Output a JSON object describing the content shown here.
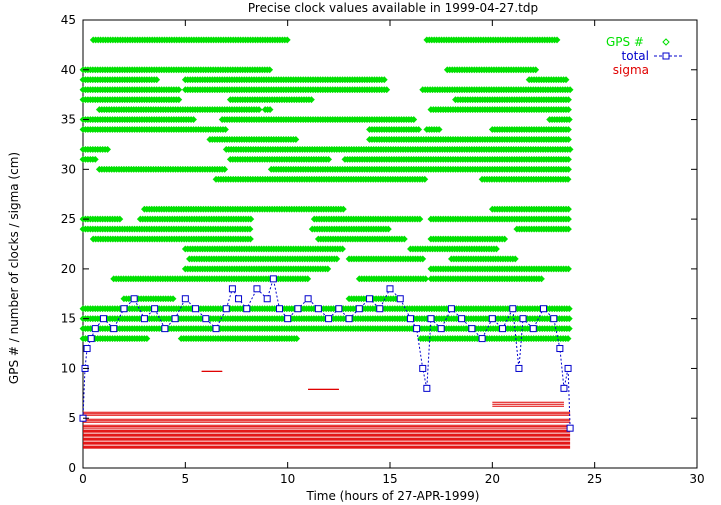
{
  "chart_data": {
    "type": "scatter",
    "title": "Precise clock values available in 1999-04-27.tdp",
    "xlabel": "Time (hours of 27-APR-1999)",
    "ylabel": "GPS # / number of clocks / sigma (cm)",
    "xlim": [
      0,
      30
    ],
    "ylim": [
      0,
      45
    ],
    "x_ticks": [
      "0",
      "5",
      "10",
      "15",
      "20",
      "25",
      "30"
    ],
    "y_ticks": [
      "0",
      "5",
      "10",
      "15",
      "20",
      "25",
      "30",
      "35",
      "40",
      "45"
    ],
    "grid": false,
    "legend_position": "top-right",
    "colors": {
      "gps": "#00e000",
      "total": "#0000cc",
      "sigma": "#e00000"
    },
    "series": [
      {
        "name": "GPS #",
        "marker": "diamond",
        "color": "#00e000",
        "segments": [
          {
            "prn": 43,
            "intervals": [
              [
                0.5,
                10.0
              ],
              [
                16.8,
                23.2
              ]
            ]
          },
          {
            "prn": 40,
            "intervals": [
              [
                0.0,
                9.2
              ],
              [
                17.8,
                22.2
              ]
            ]
          },
          {
            "prn": 39,
            "intervals": [
              [
                0.0,
                3.7
              ],
              [
                5.0,
                14.8
              ],
              [
                21.8,
                23.7
              ]
            ]
          },
          {
            "prn": 38,
            "intervals": [
              [
                0.0,
                4.7
              ],
              [
                5.0,
                14.9
              ],
              [
                16.6,
                23.8
              ]
            ]
          },
          {
            "prn": 37,
            "intervals": [
              [
                0.0,
                4.7
              ],
              [
                7.2,
                11.2
              ],
              [
                18.2,
                23.8
              ]
            ]
          },
          {
            "prn": 36,
            "intervals": [
              [
                0.8,
                8.7
              ],
              [
                8.9,
                9.2
              ],
              [
                17.0,
                23.8
              ]
            ]
          },
          {
            "prn": 35,
            "intervals": [
              [
                0.0,
                5.5
              ],
              [
                6.8,
                16.2
              ],
              [
                22.8,
                23.8
              ]
            ]
          },
          {
            "prn": 34,
            "intervals": [
              [
                0.0,
                7.0
              ],
              [
                14.0,
                16.5
              ],
              [
                16.8,
                17.5
              ],
              [
                20.0,
                23.8
              ]
            ]
          },
          {
            "prn": 33,
            "intervals": [
              [
                6.2,
                10.5
              ],
              [
                14.0,
                23.8
              ]
            ]
          },
          {
            "prn": 32,
            "intervals": [
              [
                0.0,
                1.2
              ],
              [
                7.0,
                23.8
              ]
            ]
          },
          {
            "prn": 31,
            "intervals": [
              [
                0.0,
                0.7
              ],
              [
                7.2,
                12.0
              ],
              [
                12.8,
                23.8
              ]
            ]
          },
          {
            "prn": 30,
            "intervals": [
              [
                0.8,
                7.0
              ],
              [
                9.2,
                23.8
              ]
            ]
          },
          {
            "prn": 29,
            "intervals": [
              [
                6.5,
                16.7
              ],
              [
                19.5,
                23.8
              ]
            ]
          },
          {
            "prn": 26,
            "intervals": [
              [
                3.0,
                12.8
              ],
              [
                20.0,
                23.8
              ]
            ]
          },
          {
            "prn": 25,
            "intervals": [
              [
                0.0,
                1.8
              ],
              [
                2.8,
                8.2
              ],
              [
                11.3,
                16.5
              ],
              [
                17.0,
                23.8
              ]
            ]
          },
          {
            "prn": 24,
            "intervals": [
              [
                0.0,
                8.2
              ],
              [
                11.2,
                15.0
              ],
              [
                21.2,
                23.8
              ]
            ]
          },
          {
            "prn": 23,
            "intervals": [
              [
                0.5,
                8.2
              ],
              [
                11.5,
                15.7
              ],
              [
                17.0,
                20.7
              ]
            ]
          },
          {
            "prn": 22,
            "intervals": [
              [
                5.0,
                12.7
              ],
              [
                16.0,
                20.2
              ]
            ]
          },
          {
            "prn": 21,
            "intervals": [
              [
                5.2,
                12.5
              ],
              [
                13.0,
                16.7
              ],
              [
                18.0,
                21.2
              ]
            ]
          },
          {
            "prn": 20,
            "intervals": [
              [
                5.0,
                12.0
              ],
              [
                17.0,
                23.8
              ]
            ]
          },
          {
            "prn": 19,
            "intervals": [
              [
                1.5,
                11.0
              ],
              [
                13.5,
                16.8
              ],
              [
                17.0,
                22.5
              ]
            ]
          },
          {
            "prn": 17,
            "intervals": [
              [
                2.0,
                4.5
              ],
              [
                13.0,
                15.5
              ]
            ]
          },
          {
            "prn": 16,
            "intervals": [
              [
                0.0,
                23.8
              ]
            ]
          },
          {
            "prn": 15,
            "intervals": [
              [
                0.0,
                23.8
              ]
            ]
          },
          {
            "prn": 14,
            "intervals": [
              [
                0.0,
                23.8
              ]
            ]
          },
          {
            "prn": 13,
            "intervals": [
              [
                0.0,
                3.2
              ],
              [
                4.8,
                10.5
              ],
              [
                16.5,
                23.8
              ]
            ]
          }
        ]
      },
      {
        "name": "total",
        "marker": "square",
        "color": "#0000cc",
        "x": [
          0.0,
          0.1,
          0.2,
          0.4,
          0.6,
          1.0,
          1.5,
          2.0,
          2.5,
          3.0,
          3.5,
          4.0,
          4.5,
          5.0,
          5.5,
          6.0,
          6.5,
          7.0,
          7.3,
          7.6,
          8.0,
          8.5,
          9.0,
          9.3,
          9.6,
          10.0,
          10.5,
          11.0,
          11.5,
          12.0,
          12.5,
          13.0,
          13.5,
          14.0,
          14.5,
          15.0,
          15.5,
          16.0,
          16.3,
          16.6,
          16.8,
          17.0,
          17.5,
          18.0,
          18.5,
          19.0,
          19.5,
          20.0,
          20.5,
          21.0,
          21.3,
          21.5,
          22.0,
          22.5,
          23.0,
          23.3,
          23.5,
          23.7,
          23.8
        ],
        "y": [
          5,
          10,
          12,
          13,
          14,
          15,
          14,
          16,
          17,
          15,
          16,
          14,
          15,
          17,
          16,
          15,
          14,
          16,
          18,
          17,
          16,
          18,
          17,
          19,
          16,
          15,
          16,
          17,
          16,
          15,
          16,
          15,
          16,
          17,
          16,
          18,
          17,
          15,
          14,
          10,
          8,
          15,
          14,
          16,
          15,
          14,
          13,
          15,
          14,
          16,
          10,
          15,
          14,
          16,
          15,
          12,
          8,
          10,
          4
        ]
      },
      {
        "name": "sigma",
        "marker": "line",
        "color": "#e00000",
        "bands": [
          {
            "x": [
              0.0,
              23.8
            ],
            "y": [
              2.0,
              2.2
            ]
          },
          {
            "x": [
              0.0,
              23.8
            ],
            "y": [
              2.4,
              2.6
            ]
          },
          {
            "x": [
              0.0,
              23.8
            ],
            "y": [
              2.8,
              3.0
            ]
          },
          {
            "x": [
              0.0,
              23.8
            ],
            "y": [
              3.2,
              3.4
            ]
          },
          {
            "x": [
              0.0,
              23.8
            ],
            "y": [
              3.6,
              3.8
            ]
          },
          {
            "x": [
              0.0,
              23.8
            ],
            "y": [
              4.0,
              4.3
            ]
          },
          {
            "x": [
              0.0,
              23.8
            ],
            "y": [
              4.6,
              4.9
            ]
          },
          {
            "x": [
              0.0,
              23.8
            ],
            "y": [
              5.3,
              5.6
            ]
          },
          {
            "x": [
              5.8,
              6.8
            ],
            "y": [
              9.7,
              9.7
            ]
          },
          {
            "x": [
              11.0,
              12.5
            ],
            "y": [
              7.9,
              7.9
            ]
          },
          {
            "x": [
              20.0,
              23.5
            ],
            "y": [
              6.2,
              6.6
            ]
          }
        ]
      }
    ]
  }
}
